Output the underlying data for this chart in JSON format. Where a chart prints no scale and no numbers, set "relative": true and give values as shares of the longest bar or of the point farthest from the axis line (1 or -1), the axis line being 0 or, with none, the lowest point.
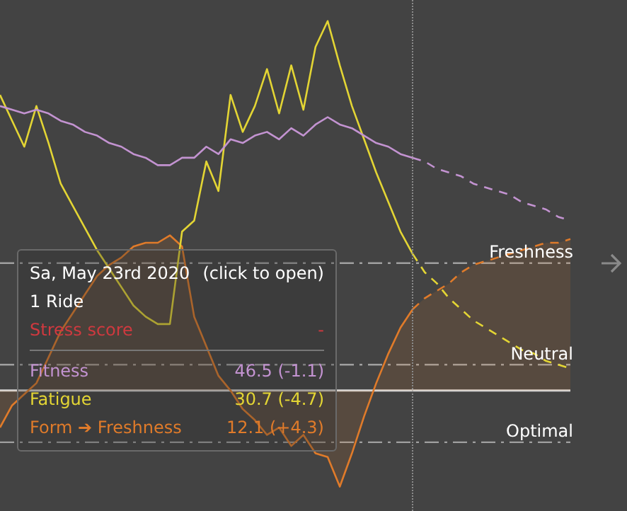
{
  "chart_data": {
    "type": "line",
    "relative": true,
    "marker": "none",
    "categories": [
      null,
      null,
      null,
      null,
      null,
      null,
      null,
      null,
      null,
      null,
      null,
      null,
      null,
      null,
      null,
      null,
      null,
      null,
      null,
      null,
      null,
      null,
      null,
      null,
      null,
      null,
      null,
      null,
      null,
      null,
      null,
      null,
      null,
      null,
      null,
      null,
      null,
      null,
      null,
      null,
      null,
      null,
      null,
      null,
      null,
      null,
      null,
      null
    ],
    "annotations": [
      "Sa, May 23rd 2020",
      "(click to open)",
      "1 Ride",
      "Stress score",
      "-",
      "46.5 (-1.1)",
      "30.7 (-4.7)",
      "12.1 (+4.3)"
    ],
    "ref_lines": [
      {
        "axis": "y",
        "value": 0.345,
        "label": "Freshness",
        "color": "#a0a0a0",
        "line_style": "dashed"
      },
      {
        "axis": "y",
        "value": 0.07,
        "label": "Neutral",
        "color": "#a0a0a0",
        "line_style": "dashed"
      },
      {
        "axis": "y",
        "value": -0.14,
        "label": "Optimal",
        "color": "#a0a0a0",
        "line_style": "dashed"
      }
    ],
    "series": [
      {
        "name": "Fitness",
        "color": "#c393d1",
        "line_style": "solid",
        "values": [
          0.77,
          0.76,
          0.75,
          0.76,
          0.75,
          0.73,
          0.72,
          0.7,
          0.69,
          0.67,
          0.66,
          0.64,
          0.63,
          0.61,
          0.61,
          0.63,
          0.63,
          0.66,
          0.64,
          0.68,
          0.67,
          0.69,
          0.7,
          0.68,
          0.71,
          0.69,
          0.72,
          0.74,
          0.72,
          0.71,
          0.69,
          0.67,
          0.66,
          0.64,
          0.63,
          null,
          null,
          null,
          null,
          null,
          null,
          null,
          null,
          null,
          null,
          null,
          null,
          null
        ]
      },
      {
        "name": "Fatigue",
        "color": "#e3d534",
        "line_style": "solid",
        "values": [
          0.8,
          0.73,
          0.66,
          0.77,
          0.67,
          0.56,
          0.5,
          0.44,
          0.38,
          0.33,
          0.28,
          0.23,
          0.2,
          0.18,
          0.18,
          0.43,
          0.46,
          0.62,
          0.54,
          0.8,
          0.7,
          0.77,
          0.87,
          0.75,
          0.88,
          0.76,
          0.93,
          1,
          0.88,
          0.77,
          0.68,
          0.59,
          0.51,
          0.43,
          0.37,
          null,
          null,
          null,
          null,
          null,
          null,
          null,
          null,
          null,
          null,
          null,
          null,
          null
        ]
      },
      {
        "name": "Form ➔ Freshness",
        "type": "area",
        "color": "#e07b2a",
        "line_style": "solid",
        "values": [
          -0.1,
          -0.04,
          -0.01,
          0.02,
          0.09,
          0.16,
          0.21,
          0.26,
          0.31,
          0.34,
          0.36,
          0.39,
          0.4,
          0.4,
          0.42,
          0.39,
          0.2,
          0.12,
          0.04,
          0,
          -0.05,
          -0.08,
          -0.12,
          -0.1,
          -0.15,
          -0.12,
          -0.17,
          -0.18,
          -0.26,
          -0.17,
          -0.07,
          0.02,
          0.1,
          0.17,
          0.22,
          null,
          null,
          null,
          null,
          null,
          null,
          null,
          null,
          null,
          null,
          null,
          null,
          null
        ]
      },
      {
        "color": "#c393d1",
        "line_style": "dashed",
        "values": [
          null,
          null,
          null,
          null,
          null,
          null,
          null,
          null,
          null,
          null,
          null,
          null,
          null,
          null,
          null,
          null,
          null,
          null,
          null,
          null,
          null,
          null,
          null,
          null,
          null,
          null,
          null,
          null,
          null,
          null,
          null,
          null,
          null,
          null,
          0.63,
          0.62,
          0.6,
          0.59,
          0.58,
          0.56,
          0.55,
          0.54,
          0.53,
          0.51,
          0.5,
          0.49,
          0.47,
          0.46
        ]
      },
      {
        "color": "#e3d534",
        "line_style": "dashed",
        "values": [
          null,
          null,
          null,
          null,
          null,
          null,
          null,
          null,
          null,
          null,
          null,
          null,
          null,
          null,
          null,
          null,
          null,
          null,
          null,
          null,
          null,
          null,
          null,
          null,
          null,
          null,
          null,
          null,
          null,
          null,
          null,
          null,
          null,
          null,
          0.37,
          0.32,
          0.29,
          0.25,
          0.22,
          0.19,
          0.17,
          0.15,
          0.13,
          0.11,
          0.1,
          0.08,
          0.07,
          0.06
        ]
      },
      {
        "type": "area",
        "color": "#e07b2a",
        "line_style": "dashed",
        "values": [
          null,
          null,
          null,
          null,
          null,
          null,
          null,
          null,
          null,
          null,
          null,
          null,
          null,
          null,
          null,
          null,
          null,
          null,
          null,
          null,
          null,
          null,
          null,
          null,
          null,
          null,
          null,
          null,
          null,
          null,
          null,
          null,
          null,
          null,
          0.22,
          0.25,
          0.27,
          0.29,
          0.32,
          0.34,
          0.35,
          0.36,
          0.37,
          0.38,
          0.39,
          0.4,
          0.4,
          0.41
        ]
      }
    ]
  }
}
